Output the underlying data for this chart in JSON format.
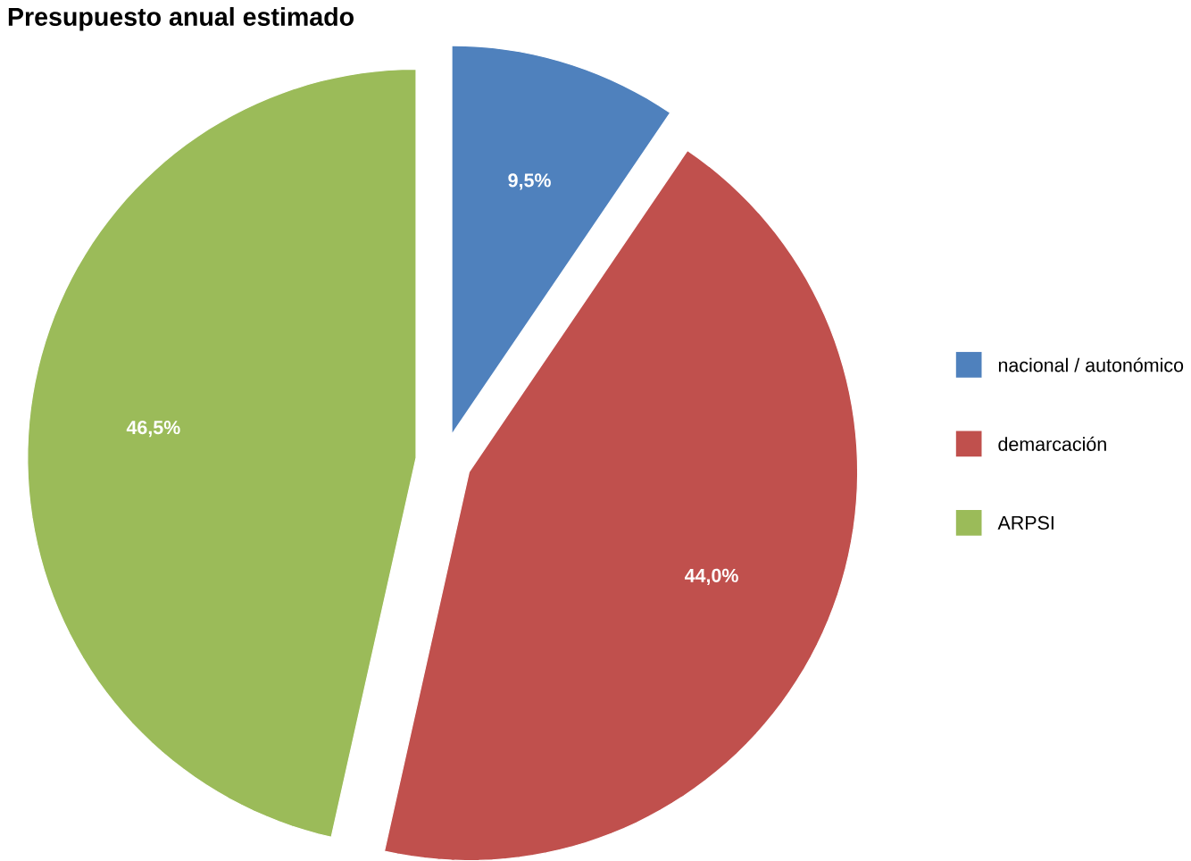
{
  "chart_data": {
    "type": "pie",
    "title": "Presupuesto anual estimado",
    "categories": [
      "nacional / autonómico",
      "demarcación",
      "ARPSI"
    ],
    "values": [
      9.5,
      44.0,
      46.5
    ],
    "colors": [
      "#4f81bd",
      "#c0504d",
      "#9bbb59"
    ],
    "value_labels": [
      "9,5%",
      "44,0%",
      "46,5%"
    ],
    "legend": "right"
  }
}
